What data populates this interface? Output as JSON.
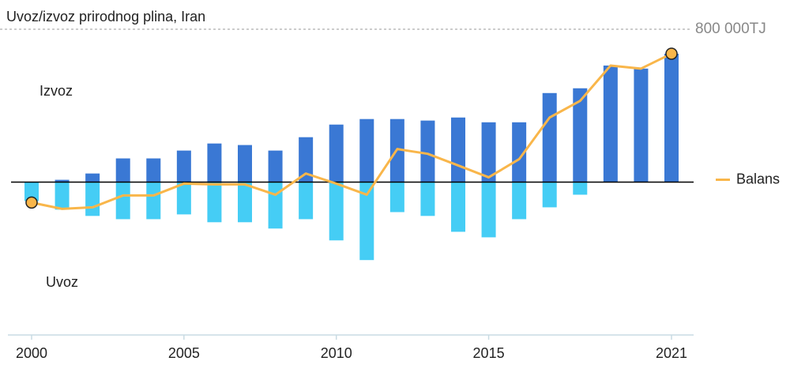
{
  "chart_data": {
    "type": "bar_line",
    "title": "Uvoz/izvoz prirodnog plina, Iran",
    "x": [
      2000,
      2001,
      2002,
      2003,
      2004,
      2005,
      2006,
      2007,
      2008,
      2009,
      2010,
      2011,
      2012,
      2013,
      2014,
      2015,
      2016,
      2017,
      2018,
      2019,
      2020,
      2021
    ],
    "xlim": [
      2000,
      2021
    ],
    "xticks": [
      2000,
      2005,
      2010,
      2015,
      2021
    ],
    "ylim": [
      -800000,
      800000
    ],
    "yticks": [
      {
        "value": 800000,
        "label": "800 000TJ"
      }
    ],
    "series": [
      {
        "name": "Izvoz",
        "color": "#3a78d4",
        "kind": "bar",
        "values": [
          0,
          12000,
          45000,
          124000,
          124000,
          165000,
          202000,
          194000,
          165000,
          235000,
          301000,
          330000,
          330000,
          322000,
          338000,
          313000,
          313000,
          466000,
          491000,
          610000,
          594000,
          672000
        ]
      },
      {
        "name": "Uvoz",
        "color": "#45cdf5",
        "kind": "bar",
        "values": [
          -99000,
          -144000,
          -177000,
          -194000,
          -194000,
          -169000,
          -210000,
          -210000,
          -243000,
          -194000,
          -305000,
          -408000,
          -157000,
          -177000,
          -260000,
          -289000,
          -194000,
          -132000,
          -66000,
          0,
          0,
          0
        ]
      },
      {
        "name": "Balans",
        "color": "#f9b64a",
        "kind": "line",
        "values": [
          -107000,
          -140000,
          -132000,
          -70000,
          -70000,
          -8000,
          -12000,
          -12000,
          -66000,
          45000,
          -8000,
          -66000,
          173000,
          148000,
          87000,
          25000,
          120000,
          338000,
          425000,
          610000,
          594000,
          672000
        ]
      }
    ]
  }
}
